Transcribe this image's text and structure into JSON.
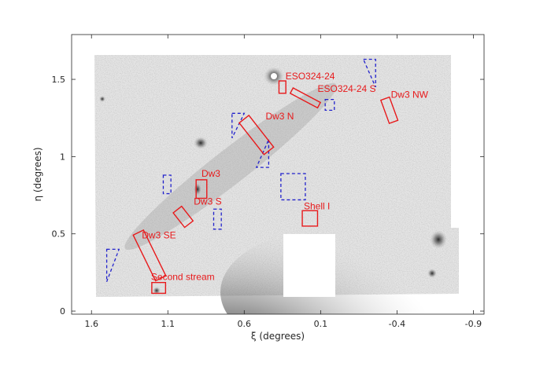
{
  "chart_data": {
    "type": "scatter",
    "xlabel": "ξ (degrees)",
    "ylabel": "η (degrees)",
    "xlim": [
      1.73,
      -0.97
    ],
    "ylim": [
      -0.02,
      1.79
    ],
    "xticks": [
      1.6,
      1.1,
      0.6,
      0.1,
      -0.4,
      -0.9
    ],
    "xtick_labels": [
      "1.6",
      "1.1",
      "0.6",
      "0.1",
      "-0.4",
      "-0.9"
    ],
    "yticks": [
      0,
      0.5,
      1,
      1.5
    ],
    "ytick_labels": [
      "0",
      "0.5",
      "1",
      "1.5"
    ],
    "grid": false,
    "background": "greyscale stellar density map",
    "fields": [
      {
        "name": "Dw3",
        "shape": "rotated-box",
        "kind": "signal",
        "center": [
          0.88,
          0.79
        ],
        "size": [
          0.07,
          0.12
        ],
        "angle": 0,
        "label_pos": [
          0.88,
          0.87
        ]
      },
      {
        "name": "Dw3 S",
        "shape": "rotated-box",
        "kind": "signal",
        "center": [
          1.0,
          0.61
        ],
        "size": [
          0.07,
          0.12
        ],
        "angle": -38,
        "label_pos": [
          0.93,
          0.69
        ]
      },
      {
        "name": "Dw3 SE",
        "shape": "rotated-box",
        "kind": "signal",
        "center": [
          1.22,
          0.36
        ],
        "size": [
          0.075,
          0.33
        ],
        "angle": -26,
        "label_pos": [
          1.27,
          0.47
        ]
      },
      {
        "name": "Second stream",
        "shape": "rotated-box",
        "kind": "signal",
        "center": [
          1.16,
          0.15
        ],
        "size": [
          0.09,
          0.07
        ],
        "angle": 0,
        "label_pos": [
          1.21,
          0.2
        ]
      },
      {
        "name": "Dw3 N",
        "shape": "rotated-box",
        "kind": "signal",
        "center": [
          0.52,
          1.14
        ],
        "size": [
          0.08,
          0.26
        ],
        "angle": -38,
        "label_pos": [
          0.46,
          1.24
        ]
      },
      {
        "name": "ESO324-24",
        "shape": "rotated-box",
        "kind": "signal",
        "center": [
          0.35,
          1.45
        ],
        "size": [
          0.045,
          0.08
        ],
        "angle": 0,
        "label_pos": [
          0.33,
          1.5
        ]
      },
      {
        "name": "ESO324-24 S",
        "shape": "rotated-box",
        "kind": "signal",
        "center": [
          0.2,
          1.38
        ],
        "size": [
          0.04,
          0.2
        ],
        "angle": -62,
        "label_pos": [
          0.12,
          1.42
        ]
      },
      {
        "name": "Dw3 NW",
        "shape": "rotated-box",
        "kind": "signal",
        "center": [
          -0.35,
          1.3
        ],
        "size": [
          0.06,
          0.16
        ],
        "angle": -20,
        "label_pos": [
          -0.36,
          1.38
        ]
      },
      {
        "name": "Shell I",
        "shape": "rotated-box",
        "kind": "signal",
        "center": [
          0.17,
          0.6
        ],
        "size": [
          0.1,
          0.1
        ],
        "angle": 0,
        "label_pos": [
          0.21,
          0.66
        ]
      }
    ],
    "control_fields": [
      {
        "shape": "rect",
        "x": [
          1.13,
          1.08
        ],
        "y": [
          0.76,
          0.88
        ]
      },
      {
        "shape": "rect",
        "x": [
          0.8,
          0.75
        ],
        "y": [
          0.53,
          0.66
        ]
      },
      {
        "shape": "rect",
        "x": [
          0.07,
          0.01
        ],
        "y": [
          1.3,
          1.37
        ]
      },
      {
        "shape": "rect",
        "x": [
          0.36,
          0.2
        ],
        "y": [
          0.72,
          0.89
        ]
      },
      {
        "shape": "triangle",
        "points": [
          [
            0.68,
            1.28
          ],
          [
            0.6,
            1.28
          ],
          [
            0.68,
            1.12
          ]
        ]
      },
      {
        "shape": "triangle",
        "points": [
          [
            0.44,
            1.11
          ],
          [
            0.44,
            0.93
          ],
          [
            0.52,
            0.93
          ]
        ]
      },
      {
        "shape": "triangle",
        "points": [
          [
            1.5,
            0.4
          ],
          [
            1.42,
            0.4
          ],
          [
            1.5,
            0.19
          ]
        ]
      },
      {
        "shape": "triangle",
        "points": [
          [
            -0.18,
            1.63
          ],
          [
            -0.26,
            1.63
          ],
          [
            -0.26,
            1.45
          ]
        ]
      }
    ],
    "colors": {
      "signal": "#e8191b",
      "control": "#2222cc",
      "axis": "#262626"
    }
  }
}
